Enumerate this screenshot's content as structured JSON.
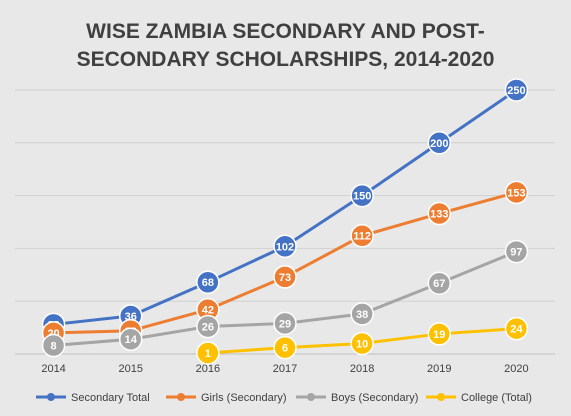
{
  "chart_data": {
    "type": "line",
    "title_line1": "WISE ZAMBIA SECONDARY AND POST-",
    "title_line2": "SECONDARY SCHOLARSHIPS, 2014-2020",
    "xlabel": "",
    "ylabel": "",
    "x": [
      "2014",
      "2015",
      "2016",
      "2017",
      "2018",
      "2019",
      "2020"
    ],
    "ylim": [
      0,
      250
    ],
    "grid": true,
    "legend": "bottom",
    "series": [
      {
        "name": "Secondary Total",
        "color": "#4472c4",
        "values": [
          28,
          36,
          68,
          102,
          150,
          200,
          250
        ]
      },
      {
        "name": "Girls (Secondary)",
        "color": "#ed7d31",
        "values": [
          20,
          22,
          42,
          73,
          112,
          133,
          153
        ]
      },
      {
        "name": "Boys (Secondary)",
        "color": "#a5a5a5",
        "values": [
          8,
          14,
          26,
          29,
          38,
          67,
          97
        ]
      },
      {
        "name": "College (Total)",
        "color": "#ffc000",
        "values": [
          null,
          null,
          1,
          6,
          10,
          19,
          24
        ]
      }
    ]
  }
}
